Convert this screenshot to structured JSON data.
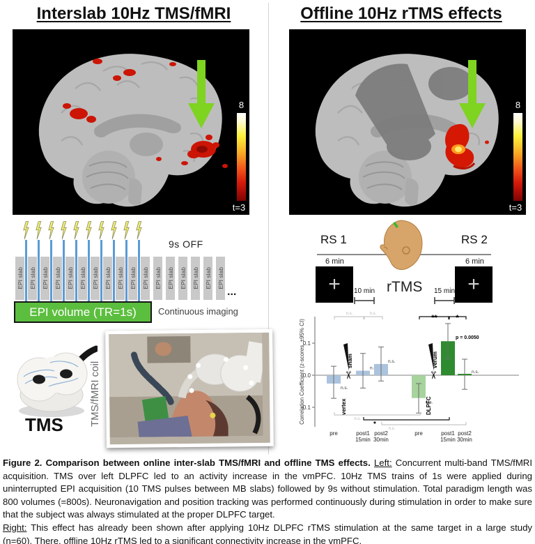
{
  "left": {
    "title": "Interslab 10Hz TMS/fMRI",
    "colorbar": {
      "max": "8",
      "min": "t=3"
    },
    "paradigm": {
      "slab_label": "EPI slab",
      "stim_slabs": 11,
      "pulses": 10,
      "rest_slabs": 6,
      "off_label": "9s OFF",
      "ellipsis": "...",
      "volume_label": "EPI volume (TR=1s)",
      "continuous_label": "Continuous imaging"
    },
    "hardware": {
      "device_label": "TMS",
      "coil_label": "TMS/fMRI coil"
    }
  },
  "right": {
    "title": "Offline 10Hz rTMS effects",
    "colorbar": {
      "max": "8",
      "min": "t=3"
    },
    "timeline": {
      "rs1": "RS 1",
      "rs2": "RS 2",
      "rs1_duration": "6 min",
      "rs2_duration": "6 min",
      "gap1": "10 min",
      "gap2": "15 min",
      "rtms": "rTMS",
      "fixation": "+"
    }
  },
  "chart_data": {
    "type": "bar",
    "title": "",
    "ylabel": "Correlation Coefficient (z-scores, ±95% CI)",
    "yticks": [
      {
        "value": 0.1,
        "label": "0.1"
      },
      {
        "value": 0.0,
        "label": "0.0"
      },
      {
        "value": -0.1,
        "label": "-0.1"
      }
    ],
    "ylim": [
      -0.155,
      0.18
    ],
    "grid": false,
    "bars": [
      {
        "label": "pre",
        "sublabel": "",
        "value": -0.026,
        "ci": [
          -0.072,
          0.028
        ],
        "color": "#abc3dd",
        "sig": "n.s."
      },
      {
        "label": "post1",
        "sublabel": "15min",
        "value": 0.014,
        "ci": [
          -0.04,
          0.068
        ],
        "color": "#abc3dd",
        "sig": "n.s."
      },
      {
        "label": "post2",
        "sublabel": "30min",
        "value": 0.035,
        "ci": [
          -0.018,
          0.088
        ],
        "color": "#abc3dd",
        "sig": "n.s."
      },
      {
        "label": "pre",
        "sublabel": "",
        "value": -0.071,
        "ci": [
          -0.118,
          -0.026
        ],
        "color": "#a7d39d",
        "sig": "n.s."
      },
      {
        "label": "post1",
        "sublabel": "15min",
        "value": 0.106,
        "ci": [
          0.051,
          0.161
        ],
        "color": "#2e8b2f",
        "sig": "p = 0.0050"
      },
      {
        "label": "post2",
        "sublabel": "30min",
        "value": 0.002,
        "ci": [
          -0.044,
          0.05
        ],
        "color": "#2e8b2f",
        "sig": "n.s."
      }
    ],
    "cut_markers": [
      {
        "site": "vertex",
        "condition": "sham",
        "between": [
          0,
          1
        ]
      },
      {
        "site": "DLPFC",
        "condition": "verum",
        "between": [
          3,
          4
        ]
      }
    ],
    "comparisons_top": [
      {
        "a": 0,
        "b": 1,
        "label": "n.s.",
        "emph": false
      },
      {
        "a": 1,
        "b": 2,
        "label": "n.s.",
        "emph": false
      },
      {
        "a": 3,
        "b": 4,
        "label": "**",
        "emph": true
      },
      {
        "a": 4,
        "b": 5,
        "label": "*",
        "emph": true
      }
    ],
    "comparisons_bottom": [
      {
        "a": 0,
        "b": 3,
        "label": "n.s.",
        "emph": false
      },
      {
        "a": 1,
        "b": 4,
        "label": "*",
        "emph": true
      },
      {
        "a": 2,
        "b": 5,
        "label": "n.s.",
        "emph": false
      }
    ]
  },
  "caption": {
    "paragraphs": [
      [
        {
          "t": "Figure 2. Comparison between online inter-slab TMS/fMRI and offline TMS effects.  ",
          "b": true
        },
        {
          "t": "Left:",
          "u": true
        },
        {
          "t": " Concurrent multi-band TMS/fMRI acquisition. TMS over left DLPFC led to an activity increase in the vmPFC. 10Hz TMS trains of 1s were applied during uninterrupted EPI acquisition (10 TMS pulses between MB slabs) followed by 9s without stimulation. Total paradigm length was 800 volumes (=800s). Neuronavigation and position tracking was performed continuously during stimulation in order to make sure that the subject was always stimulated at the proper DLPFC target."
        }
      ],
      [
        {
          "t": "Right:",
          "u": true
        },
        {
          "t": " This effect has already been shown after applying 10Hz DLPFC rTMS stimulation at the same target in a large study (n=60). There, offline 10Hz rTMS led to a significant connectivity  increase in the vmPFC."
        }
      ]
    ]
  },
  "colors": {
    "arrow_green": "#7fd321",
    "epi_box_green": "#5cbe3e",
    "pulse_blue": "#5b9bd5",
    "slab_gray": "#c9c9c9",
    "bar_blue": "#abc3dd",
    "bar_light_green": "#a7d39d",
    "bar_dark_green": "#2e8b2f",
    "activation_red": "#cc1505",
    "activation_core_yellow": "#ffe96a"
  }
}
